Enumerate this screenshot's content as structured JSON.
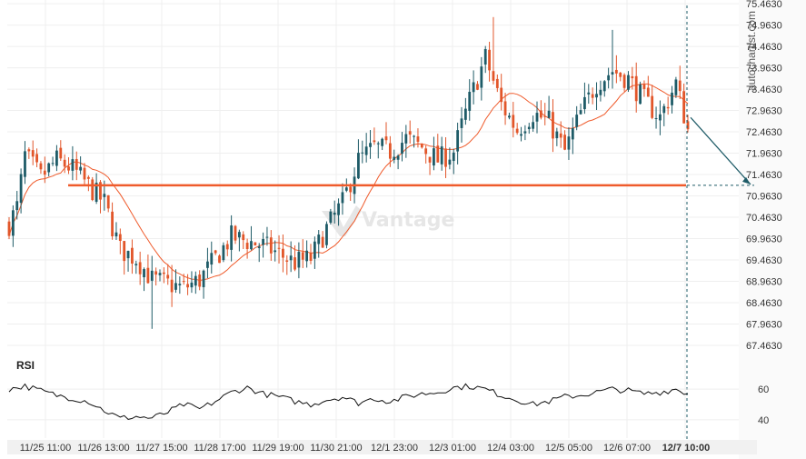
{
  "chart_data": {
    "type": "candlestick",
    "watermark": "autochartist.com",
    "logo": "Vantage",
    "y_ticks": [
      "75.4630",
      "74.9630",
      "74.4630",
      "73.9630",
      "73.4630",
      "72.9630",
      "72.4630",
      "71.9630",
      "71.4630",
      "70.9630",
      "70.4630",
      "69.9630",
      "69.4630",
      "68.9630",
      "68.4630",
      "67.9630",
      "67.4630"
    ],
    "ylim": [
      67.25,
      75.55
    ],
    "x_ticks": [
      "11/25 11:00",
      "11/26 13:00",
      "11/27 15:00",
      "11/28 17:00",
      "11/29 19:00",
      "11/30 21:00",
      "12/1 23:00",
      "12/3 01:00",
      "12/4 03:00",
      "12/5 05:00",
      "12/6 07:00",
      "12/7 10:00"
    ],
    "x_tick_bold_last": true,
    "support_level": 71.21,
    "forecast_target": 71.21,
    "colors": {
      "up": "#1e5b67",
      "down": "#e2562a",
      "ma": "#ef5b2c",
      "support": "#ef5b2c",
      "rsi": "#111111",
      "arrow": "#1e5b67",
      "grid": "#efefef",
      "axis_bg": "#f1f1f1"
    },
    "rsi": {
      "label": "RSI",
      "ticks": [
        "60",
        "40"
      ],
      "ylim": [
        28,
        72
      ]
    },
    "trend": [
      [
        0,
        70.3
      ],
      [
        2,
        70.7
      ],
      [
        4,
        71.9
      ],
      [
        8,
        71.4
      ],
      [
        12,
        71.8
      ],
      [
        16,
        71.6
      ],
      [
        20,
        71.2
      ],
      [
        24,
        70.8
      ],
      [
        28,
        69.7
      ],
      [
        32,
        69.5
      ],
      [
        36,
        69.0
      ],
      [
        40,
        68.9
      ],
      [
        44,
        68.8
      ],
      [
        48,
        69.0
      ],
      [
        52,
        69.5
      ],
      [
        56,
        70.0
      ],
      [
        60,
        69.9
      ],
      [
        64,
        69.8
      ],
      [
        68,
        69.6
      ],
      [
        72,
        69.4
      ],
      [
        76,
        69.5
      ],
      [
        80,
        70.2
      ],
      [
        84,
        70.8
      ],
      [
        88,
        71.8
      ],
      [
        92,
        72.1
      ],
      [
        96,
        72.0
      ],
      [
        100,
        72.3
      ],
      [
        104,
        72.1
      ],
      [
        108,
        71.8
      ],
      [
        112,
        72.0
      ],
      [
        116,
        73.2
      ],
      [
        120,
        74.2
      ],
      [
        124,
        73.1
      ],
      [
        128,
        72.5
      ],
      [
        132,
        72.9
      ],
      [
        136,
        72.7
      ],
      [
        140,
        72.0
      ],
      [
        144,
        72.9
      ],
      [
        148,
        73.6
      ],
      [
        152,
        73.9
      ],
      [
        156,
        73.7
      ],
      [
        160,
        73.2
      ],
      [
        164,
        72.8
      ],
      [
        168,
        73.6
      ],
      [
        171,
        72.5
      ]
    ],
    "rsi_trend": [
      [
        0,
        60
      ],
      [
        4,
        62
      ],
      [
        8,
        59
      ],
      [
        12,
        56
      ],
      [
        16,
        54
      ],
      [
        20,
        52
      ],
      [
        24,
        46
      ],
      [
        28,
        41
      ],
      [
        32,
        42
      ],
      [
        36,
        41
      ],
      [
        40,
        45
      ],
      [
        44,
        50
      ],
      [
        48,
        47
      ],
      [
        52,
        52
      ],
      [
        56,
        58
      ],
      [
        60,
        61
      ],
      [
        64,
        57
      ],
      [
        68,
        55
      ],
      [
        72,
        52
      ],
      [
        76,
        50
      ],
      [
        80,
        53
      ],
      [
        84,
        55
      ],
      [
        88,
        51
      ],
      [
        92,
        54
      ],
      [
        96,
        52
      ],
      [
        100,
        55
      ],
      [
        104,
        57
      ],
      [
        108,
        58
      ],
      [
        112,
        61
      ],
      [
        116,
        62
      ],
      [
        120,
        60
      ],
      [
        124,
        56
      ],
      [
        128,
        53
      ],
      [
        132,
        50
      ],
      [
        136,
        52
      ],
      [
        140,
        55
      ],
      [
        144,
        56
      ],
      [
        148,
        58
      ],
      [
        152,
        60
      ],
      [
        156,
        59
      ],
      [
        160,
        57
      ],
      [
        164,
        58
      ],
      [
        168,
        60
      ],
      [
        171,
        57
      ]
    ]
  }
}
